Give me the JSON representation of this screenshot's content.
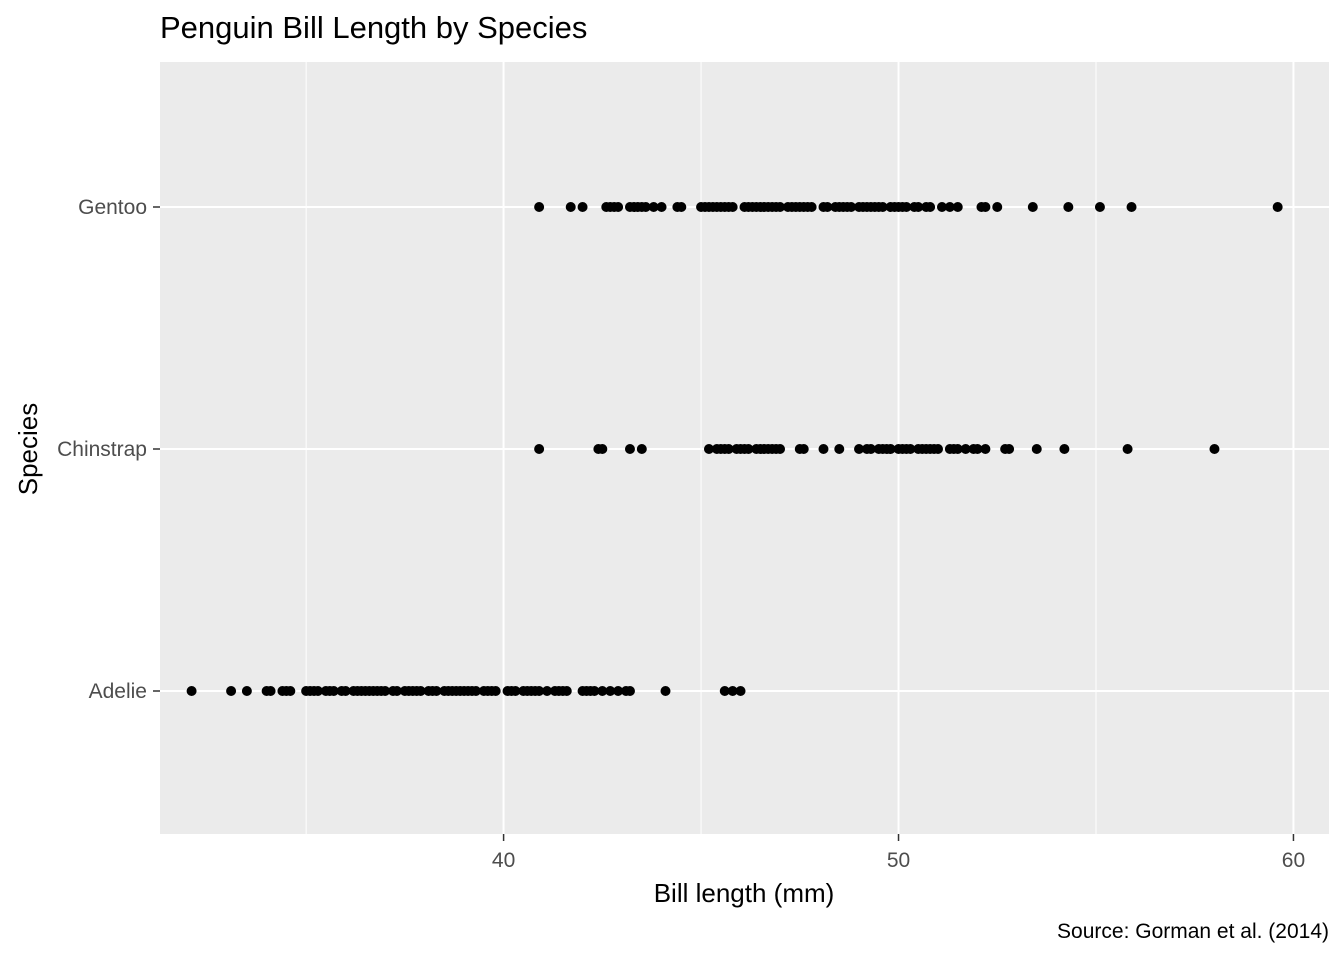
{
  "chart_data": {
    "type": "scatter",
    "title": "Penguin Bill Length by Species",
    "caption": "Source: Gorman et al. (2014)",
    "xlabel": "Bill length (mm)",
    "ylabel": "Species",
    "xlim": [
      31.3,
      60.9
    ],
    "x_ticks": [
      40,
      50,
      60
    ],
    "categories": [
      "Adelie",
      "Chinstrap",
      "Gentoo"
    ],
    "grid": true,
    "background": "#EBEBEB",
    "gridline_color": "#FFFFFF",
    "point_color": "#000000",
    "series": [
      {
        "category": "Gentoo",
        "values": [
          40.9,
          41.7,
          42.0,
          42.6,
          42.7,
          42.8,
          42.9,
          43.2,
          43.3,
          43.4,
          43.5,
          43.6,
          43.8,
          44.0,
          44.4,
          44.5,
          45.0,
          45.1,
          45.2,
          45.3,
          45.4,
          45.5,
          45.6,
          45.7,
          45.8,
          46.1,
          46.2,
          46.3,
          46.4,
          46.5,
          46.6,
          46.7,
          46.8,
          46.9,
          47.0,
          47.2,
          47.3,
          47.4,
          47.5,
          47.6,
          47.7,
          47.8,
          48.1,
          48.2,
          48.4,
          48.5,
          48.6,
          48.7,
          48.8,
          49.0,
          49.1,
          49.2,
          49.3,
          49.4,
          49.5,
          49.6,
          49.8,
          49.9,
          50.0,
          50.1,
          50.2,
          50.4,
          50.5,
          50.7,
          50.8,
          51.1,
          51.3,
          51.5,
          52.1,
          52.2,
          52.5,
          53.4,
          54.3,
          55.1,
          55.9,
          59.6
        ]
      },
      {
        "category": "Chinstrap",
        "values": [
          40.9,
          42.4,
          42.5,
          43.2,
          43.5,
          45.2,
          45.4,
          45.5,
          45.6,
          45.7,
          45.9,
          46.0,
          46.1,
          46.2,
          46.4,
          46.5,
          46.6,
          46.7,
          46.8,
          46.9,
          47.0,
          47.5,
          47.6,
          48.1,
          48.5,
          49.0,
          49.2,
          49.3,
          49.5,
          49.6,
          49.7,
          49.8,
          50.0,
          50.1,
          50.2,
          50.3,
          50.5,
          50.6,
          50.7,
          50.8,
          50.9,
          51.0,
          51.3,
          51.4,
          51.5,
          51.7,
          51.9,
          52.0,
          52.2,
          52.7,
          52.8,
          53.5,
          54.2,
          55.8,
          58.0
        ]
      },
      {
        "category": "Adelie",
        "values": [
          32.1,
          33.1,
          33.5,
          34.0,
          34.1,
          34.4,
          34.5,
          34.6,
          35.0,
          35.1,
          35.2,
          35.3,
          35.5,
          35.6,
          35.7,
          35.9,
          36.0,
          36.2,
          36.3,
          36.4,
          36.5,
          36.6,
          36.7,
          36.8,
          36.9,
          37.0,
          37.2,
          37.3,
          37.5,
          37.6,
          37.7,
          37.8,
          37.9,
          38.1,
          38.2,
          38.3,
          38.5,
          38.6,
          38.7,
          38.8,
          38.9,
          39.0,
          39.1,
          39.2,
          39.3,
          39.5,
          39.6,
          39.7,
          39.8,
          40.1,
          40.2,
          40.3,
          40.5,
          40.6,
          40.7,
          40.8,
          40.9,
          41.1,
          41.3,
          41.4,
          41.5,
          41.6,
          42.0,
          42.1,
          42.2,
          42.3,
          42.5,
          42.7,
          42.9,
          43.1,
          43.2,
          44.1,
          45.6,
          45.8,
          46.0
        ]
      }
    ]
  }
}
